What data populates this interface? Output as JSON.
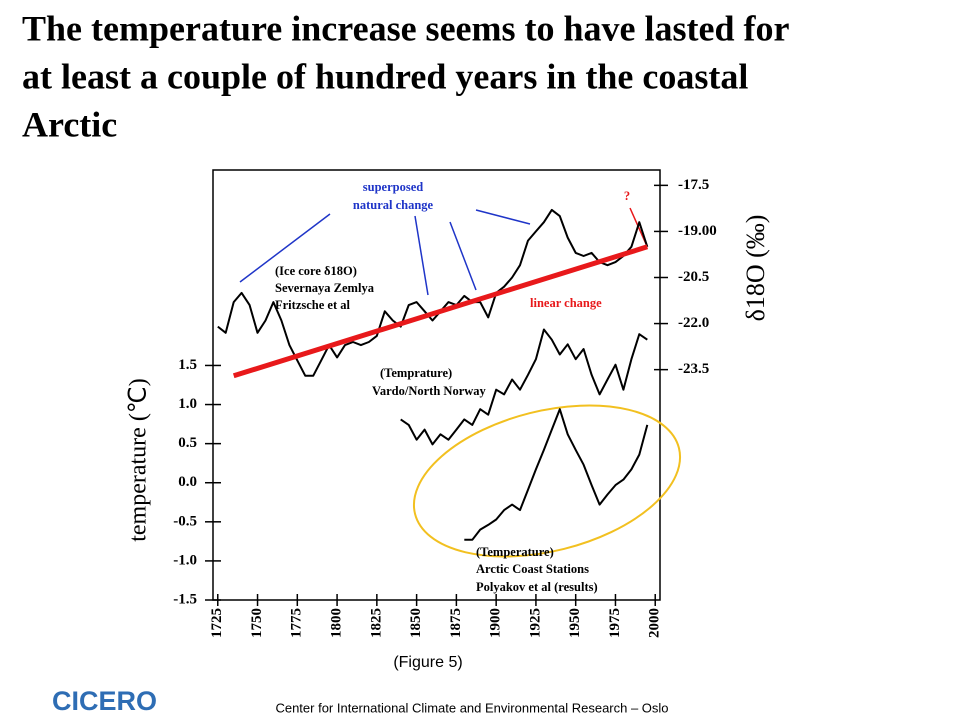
{
  "chart_data": {
    "type": "line",
    "title": [
      "The temperature increase seems to have lasted for",
      "at least a couple of hundred years in the coastal",
      "Arctic"
    ],
    "ylabel": "temperature (℃)",
    "y2label": "δ18O (‰)",
    "caption": "(Figure 5)",
    "xlim": [
      1722,
      2003
    ],
    "xticks": [
      1725,
      1750,
      1775,
      1800,
      1825,
      1850,
      1875,
      1900,
      1925,
      1950,
      1975,
      2000
    ],
    "ylim": [
      -1.5,
      4.0
    ],
    "yticks": [
      {
        "value": -1.5,
        "label": "-1.5"
      },
      {
        "value": -1.0,
        "label": "-1.0"
      },
      {
        "value": -0.5,
        "label": "-0.5"
      },
      {
        "value": 0,
        "label": "0.0"
      },
      0.5,
      {
        "value": 1.0,
        "label": "1.0"
      },
      1.5
    ],
    "y2lim": [
      -31.0,
      -17.0
    ],
    "y2ticks": [
      -17.5,
      {
        "value": -19,
        "label": "-19.00"
      },
      -20.5,
      {
        "value": -22,
        "label": "-22.0"
      },
      -23.5
    ],
    "series": [
      {
        "color": "#000000",
        "axis": "y2",
        "x": [
          1725,
          1730,
          1735,
          1740,
          1745,
          1750,
          1755,
          1760,
          1765,
          1770,
          1775,
          1780,
          1785,
          1790,
          1795,
          1800,
          1805,
          1810,
          1815,
          1820,
          1825,
          1830,
          1835,
          1840,
          1845,
          1850,
          1855,
          1860,
          1865,
          1870,
          1875,
          1880,
          1885,
          1890,
          1895,
          1900,
          1905,
          1910,
          1915,
          1920,
          1925,
          1930,
          1935,
          1940,
          1945,
          1950,
          1955,
          1960,
          1965,
          1970,
          1975,
          1980,
          1985,
          1990,
          1995
        ],
        "values": [
          -22.1,
          -22.3,
          -21.3,
          -21.0,
          -21.4,
          -22.3,
          -21.9,
          -21.3,
          -21.9,
          -22.7,
          -23.2,
          -23.7,
          -23.7,
          -23.2,
          -22.7,
          -23.1,
          -22.7,
          -22.6,
          -22.7,
          -22.6,
          -22.4,
          -21.6,
          -21.9,
          -22.1,
          -21.4,
          -21.3,
          -21.6,
          -21.9,
          -21.6,
          -21.3,
          -21.4,
          -21.1,
          -21.3,
          -21.3,
          -21.8,
          -21.0,
          -20.8,
          -20.5,
          -20.1,
          -19.3,
          -19.0,
          -18.7,
          -18.3,
          -18.5,
          -19.2,
          -19.7,
          -19.8,
          -19.7,
          -20.0,
          -20.1,
          -20.0,
          -19.8,
          -19.5,
          -18.7,
          -19.5
        ]
      },
      {
        "color": "#000000",
        "axis": "y",
        "x": [
          1840,
          1845,
          1850,
          1855,
          1860,
          1865,
          1870,
          1875,
          1880,
          1885,
          1890,
          1895,
          1900,
          1905,
          1910,
          1915,
          1920,
          1925,
          1930,
          1935,
          1940,
          1945,
          1950,
          1955,
          1960,
          1965,
          1970,
          1975,
          1980,
          1985,
          1990,
          1995
        ],
        "values": [
          0.81,
          0.74,
          0.55,
          0.68,
          0.49,
          0.62,
          0.55,
          0.68,
          0.81,
          0.74,
          0.94,
          0.87,
          1.19,
          1.13,
          1.32,
          1.19,
          1.38,
          1.58,
          1.96,
          1.83,
          1.64,
          1.77,
          1.58,
          1.71,
          1.38,
          1.13,
          1.32,
          1.51,
          1.19,
          1.58,
          1.9,
          1.83
        ]
      },
      {
        "color": "#000000",
        "axis": "y",
        "x": [
          1880,
          1885,
          1890,
          1895,
          1900,
          1905,
          1910,
          1915,
          1920,
          1925,
          1930,
          1935,
          1940,
          1945,
          1950,
          1955,
          1960,
          1965,
          1970,
          1975,
          1980,
          1985,
          1990,
          1995
        ],
        "values": [
          -0.73,
          -0.73,
          -0.6,
          -0.54,
          -0.47,
          -0.35,
          -0.28,
          -0.35,
          -0.09,
          0.17,
          0.42,
          0.68,
          0.94,
          0.62,
          0.42,
          0.23,
          -0.03,
          -0.28,
          -0.15,
          -0.03,
          0.04,
          0.17,
          0.36,
          0.74
        ]
      },
      {
        "color": "#e8191b",
        "axis": "y2",
        "x": [
          1735,
          1995
        ],
        "values": [
          -23.7,
          -19.5
        ]
      }
    ],
    "annotations": [
      {
        "text": "superposed",
        "color": "#1f35c8"
      },
      {
        "text": "natural change",
        "color": "#1f35c8"
      },
      {
        "text": "?",
        "color": "#e8191b"
      },
      {
        "text": "(Ice core δ18O)",
        "color": "#000000"
      },
      {
        "text": "Severnaya Zemlya",
        "color": "#000000"
      },
      {
        "text": "Fritzsche et al",
        "color": "#000000"
      },
      {
        "text": "linear change",
        "color": "#e8191b"
      },
      {
        "text": "(Temprature)",
        "color": "#000000"
      },
      {
        "text": "Vardo/North Norway",
        "color": "#000000"
      },
      {
        "text": "(Temperature)",
        "color": "#000000"
      },
      {
        "text": "Arctic Coast Stations",
        "color": "#000000"
      },
      {
        "text": "Polyakov et al (results)",
        "color": "#000000"
      }
    ],
    "footer": {
      "logo": "CICERO",
      "text": "Center for International Climate and Environmental Research – Oslo"
    }
  }
}
